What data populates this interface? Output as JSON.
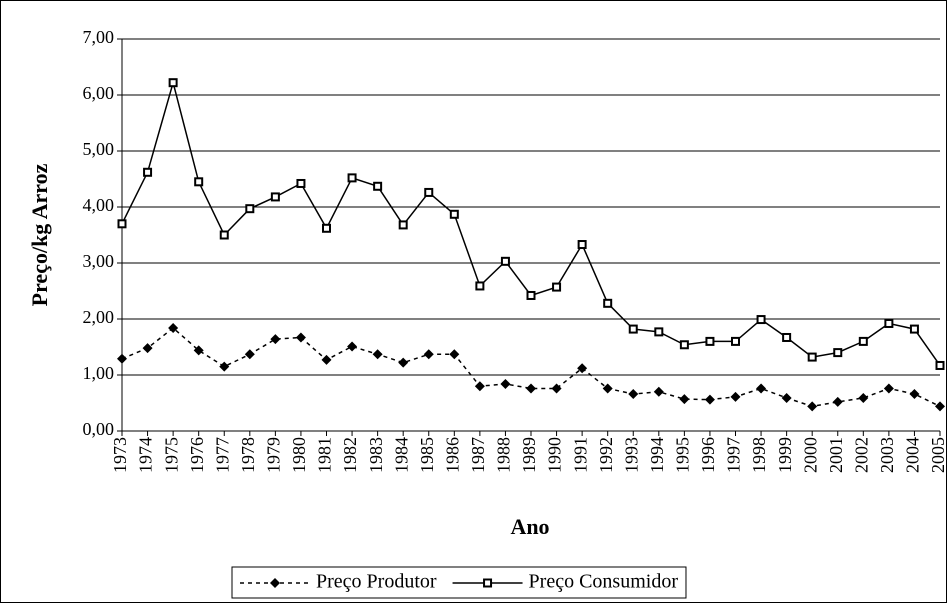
{
  "chart_data": {
    "type": "line",
    "xlabel": "Ano",
    "ylabel": "Preço/kg Arroz",
    "categories": [
      "1973",
      "1974",
      "1975",
      "1976",
      "1977",
      "1978",
      "1979",
      "1980",
      "1981",
      "1982",
      "1983",
      "1984",
      "1985",
      "1986",
      "1987",
      "1988",
      "1989",
      "1990",
      "1991",
      "1992",
      "1993",
      "1994",
      "1995",
      "1996",
      "1997",
      "1998",
      "1999",
      "2000",
      "2001",
      "2002",
      "2003",
      "2004",
      "2005"
    ],
    "series": [
      {
        "name": "Preço Produtor",
        "color": "#000000",
        "linestyle": "dotted",
        "marker": "diamond",
        "values": [
          1.29,
          1.48,
          1.84,
          1.44,
          1.15,
          1.37,
          1.64,
          1.67,
          1.27,
          1.51,
          1.37,
          1.22,
          1.37,
          1.37,
          0.8,
          0.84,
          0.76,
          0.76,
          1.12,
          0.76,
          0.66,
          0.7,
          0.57,
          0.56,
          0.61,
          0.76,
          0.59,
          0.44,
          0.52,
          0.59,
          0.76,
          0.66,
          0.44
        ]
      },
      {
        "name": "Preço Consumidor",
        "color": "#000000",
        "linestyle": "solid",
        "marker": "square",
        "values": [
          3.7,
          4.62,
          6.22,
          4.45,
          3.5,
          3.97,
          4.18,
          4.42,
          3.62,
          4.52,
          4.37,
          3.68,
          4.26,
          3.87,
          2.59,
          3.03,
          2.42,
          2.57,
          3.33,
          2.28,
          1.82,
          1.77,
          1.54,
          1.6,
          1.6,
          1.99,
          1.67,
          1.32,
          1.4,
          1.6,
          1.92,
          1.82,
          1.17
        ]
      }
    ],
    "ylim": [
      0,
      7
    ],
    "yticks": [
      {
        "value": 0,
        "label": "0,00"
      },
      {
        "value": 1,
        "label": "1,00"
      },
      {
        "value": 2,
        "label": "2,00"
      },
      {
        "value": 3,
        "label": "3,00"
      },
      {
        "value": 4,
        "label": "4,00"
      },
      {
        "value": 5,
        "label": "5,00"
      },
      {
        "value": 6,
        "label": "6,00"
      },
      {
        "value": 7,
        "label": "7,00"
      }
    ],
    "grid": true,
    "legend": "bottom"
  }
}
